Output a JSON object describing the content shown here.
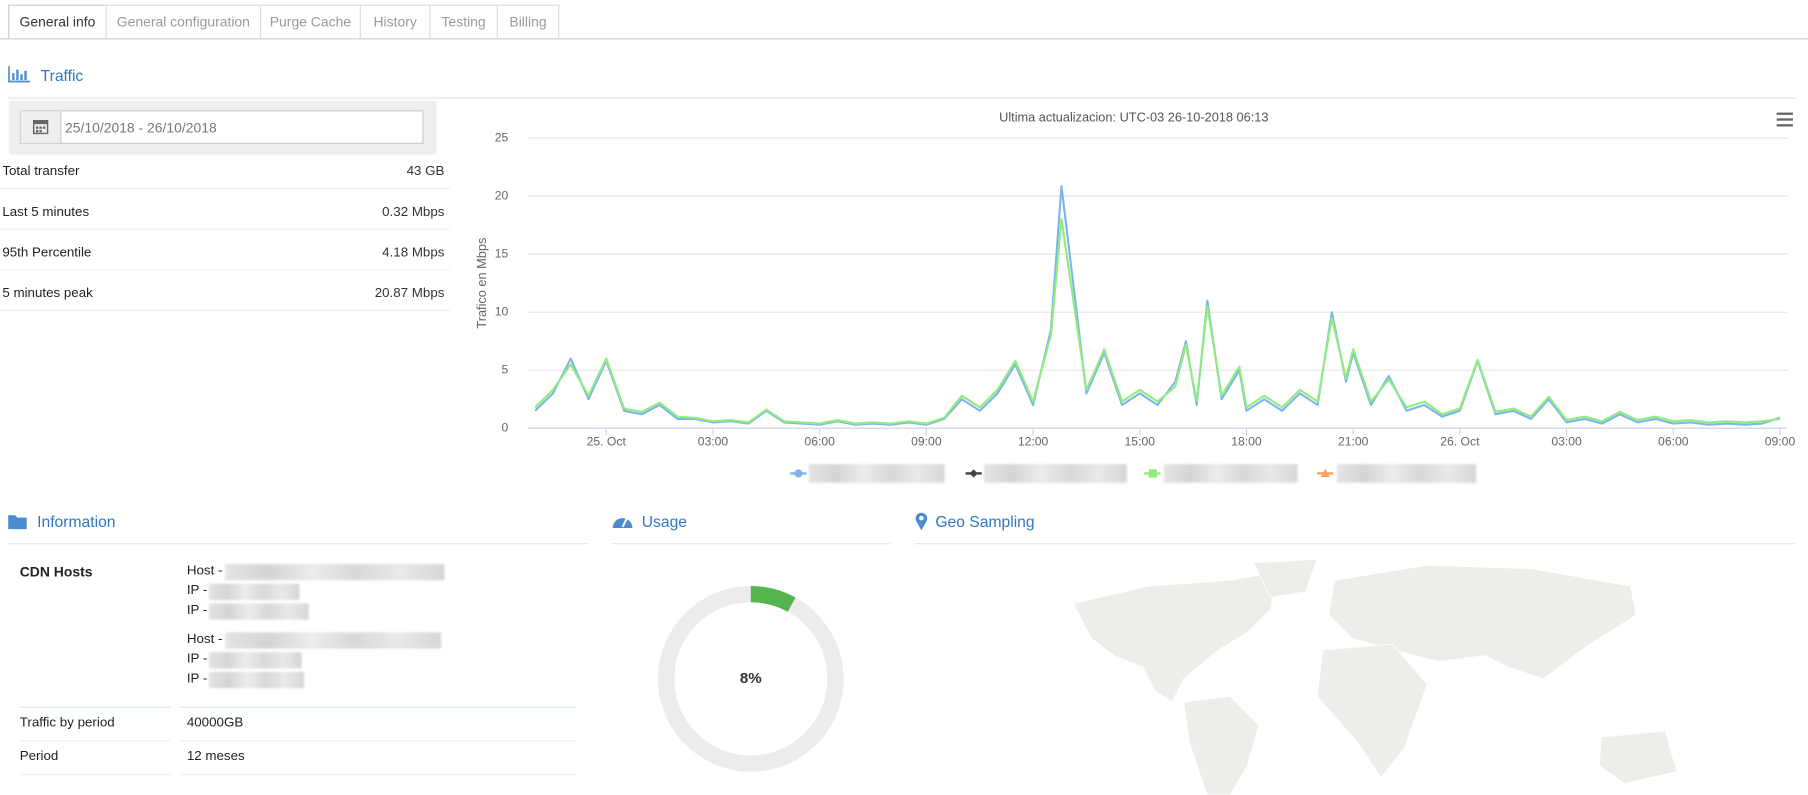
{
  "tabs": [
    "General info",
    "General configuration",
    "Purge Cache",
    "History",
    "Testing",
    "Billing"
  ],
  "traffic": {
    "title": "Traffic",
    "date_range": "25/10/2018 - 26/10/2018",
    "stats": [
      {
        "label": "Total transfer",
        "value": "43 GB"
      },
      {
        "label": "Last 5 minutes",
        "value": "0.32 Mbps"
      },
      {
        "label": "95th Percentile",
        "value": "4.18 Mbps"
      },
      {
        "label": "5 minutes peak",
        "value": "20.87 Mbps"
      }
    ]
  },
  "chart_data": {
    "type": "line",
    "title": "Ultima actualizacion: UTC-03 26-10-2018 06:13",
    "y_label": "Trafico en Mbps",
    "x": [
      -2,
      -1.5,
      -1,
      -0.5,
      0,
      0.5,
      1,
      1.5,
      2,
      2.5,
      3,
      3.5,
      4,
      4.5,
      5,
      5.5,
      6,
      6.5,
      7,
      7.5,
      8,
      8.5,
      9,
      9.5,
      10,
      10.5,
      11,
      11.5,
      12,
      12.5,
      12.8,
      13.5,
      14,
      14.5,
      15,
      15.5,
      16,
      16.3,
      16.6,
      16.9,
      17.3,
      17.8,
      18,
      18.5,
      19,
      19.5,
      20,
      20.4,
      20.8,
      21,
      21.5,
      22,
      22.5,
      23,
      23.5,
      24,
      24.5,
      25,
      25.5,
      26,
      26.5,
      27,
      27.5,
      28,
      28.5,
      29,
      29.5,
      30,
      30.5,
      31,
      31.5,
      32,
      32.5,
      33
    ],
    "xlim": [
      -2.2,
      33.2
    ],
    "xticks": [
      {
        "value": 0,
        "label": "25. Oct"
      },
      {
        "value": 3,
        "label": "03:00"
      },
      {
        "value": 6,
        "label": "06:00"
      },
      {
        "value": 9,
        "label": "09:00"
      },
      {
        "value": 12,
        "label": "12:00"
      },
      {
        "value": 15,
        "label": "15:00"
      },
      {
        "value": 18,
        "label": "18:00"
      },
      {
        "value": 21,
        "label": "21:00"
      },
      {
        "value": 24,
        "label": "26. Oct"
      },
      {
        "value": 27,
        "label": "03:00"
      },
      {
        "value": 30,
        "label": "06:00"
      },
      {
        "value": 33,
        "label": "09:00"
      }
    ],
    "ylim": [
      0,
      25
    ],
    "yticks": [
      0,
      5,
      10,
      15,
      20,
      25
    ],
    "grid": true,
    "series": [
      {
        "color": "#7cb5ec",
        "values": [
          1.5,
          3.0,
          6.0,
          2.5,
          5.8,
          1.5,
          1.2,
          2.0,
          0.8,
          0.8,
          0.5,
          0.6,
          0.4,
          1.5,
          0.5,
          0.4,
          0.3,
          0.6,
          0.3,
          0.4,
          0.3,
          0.5,
          0.3,
          0.8,
          2.5,
          1.5,
          3.0,
          5.5,
          2.0,
          8.5,
          20.87,
          3.0,
          6.5,
          2.0,
          3.0,
          2.0,
          4.0,
          7.5,
          2.0,
          11.0,
          2.5,
          5.0,
          1.5,
          2.5,
          1.5,
          3.0,
          2.0,
          10.0,
          4.0,
          6.5,
          2.0,
          4.5,
          1.5,
          2.0,
          1.0,
          1.5,
          5.8,
          1.2,
          1.5,
          0.8,
          2.5,
          0.5,
          0.8,
          0.4,
          1.2,
          0.5,
          0.8,
          0.4,
          0.5,
          0.3,
          0.4,
          0.3,
          0.4,
          0.9
        ]
      },
      {
        "color": "#90ed7d",
        "values": [
          1.8,
          3.3,
          5.5,
          2.8,
          6.0,
          1.7,
          1.4,
          2.2,
          1.0,
          0.9,
          0.6,
          0.7,
          0.5,
          1.6,
          0.6,
          0.5,
          0.4,
          0.7,
          0.4,
          0.5,
          0.4,
          0.6,
          0.4,
          0.9,
          2.8,
          1.8,
          3.3,
          5.8,
          2.3,
          8.0,
          18.0,
          3.3,
          6.8,
          2.3,
          3.3,
          2.3,
          3.6,
          7.2,
          2.3,
          10.5,
          2.8,
          5.3,
          1.8,
          2.8,
          1.8,
          3.3,
          2.3,
          9.5,
          4.3,
          6.8,
          2.3,
          4.2,
          1.8,
          2.3,
          1.2,
          1.7,
          5.9,
          1.4,
          1.7,
          1.0,
          2.7,
          0.7,
          1.0,
          0.6,
          1.4,
          0.7,
          1.0,
          0.6,
          0.7,
          0.5,
          0.6,
          0.5,
          0.6,
          0.8
        ]
      }
    ]
  },
  "information": {
    "title": "Information",
    "cdn_hosts": "CDN Hosts",
    "hosts": [
      {
        "host": "Host -",
        "ips": [
          "IP -",
          "IP -"
        ]
      },
      {
        "host": "Host -",
        "ips": [
          "IP -",
          "IP -"
        ]
      }
    ],
    "rows": [
      {
        "label": "Traffic by period",
        "value": "40000GB"
      },
      {
        "label": "Period",
        "value": "12 meses"
      }
    ]
  },
  "usage": {
    "title": "Usage",
    "value": 8,
    "value_label": "8%"
  },
  "geo": {
    "title": "Geo Sampling"
  }
}
